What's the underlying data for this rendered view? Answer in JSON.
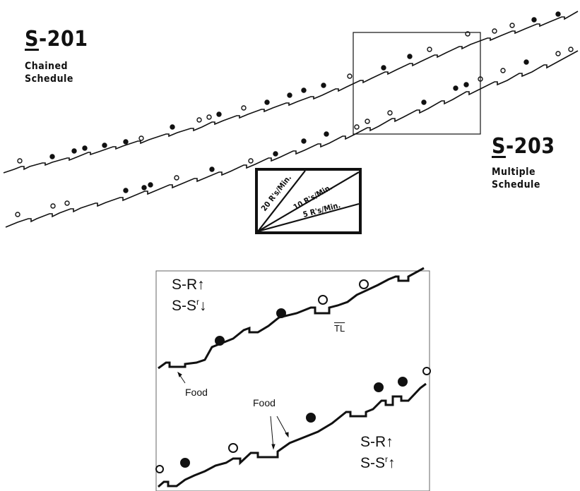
{
  "record_top": {
    "code_prefix": "S",
    "code_rest": "-201",
    "subtitle_line1": "Chained",
    "subtitle_line2": "Schedule"
  },
  "record_bottom": {
    "code_prefix": "S",
    "code_rest": "-203",
    "subtitle_line1": "Multiple",
    "subtitle_line2": "Schedule"
  },
  "rate_key": {
    "labels": [
      "20 R's/Min.",
      "10 R's/Min.",
      "5 R's/Min."
    ]
  },
  "zoom": {
    "top_label_line1": "S-R↑",
    "top_label_line2_main": "S-S",
    "top_label_line2_sup": "r",
    "top_label_line2_arrow": "↓",
    "bottom_label_line1": "S-R↑",
    "bottom_label_line2_main": "S-S",
    "bottom_label_line2_sup": "r",
    "bottom_label_line2_arrow": "↑",
    "food_label_left": "Food",
    "food_label_center": "Food",
    "tl_label": "TL"
  }
}
